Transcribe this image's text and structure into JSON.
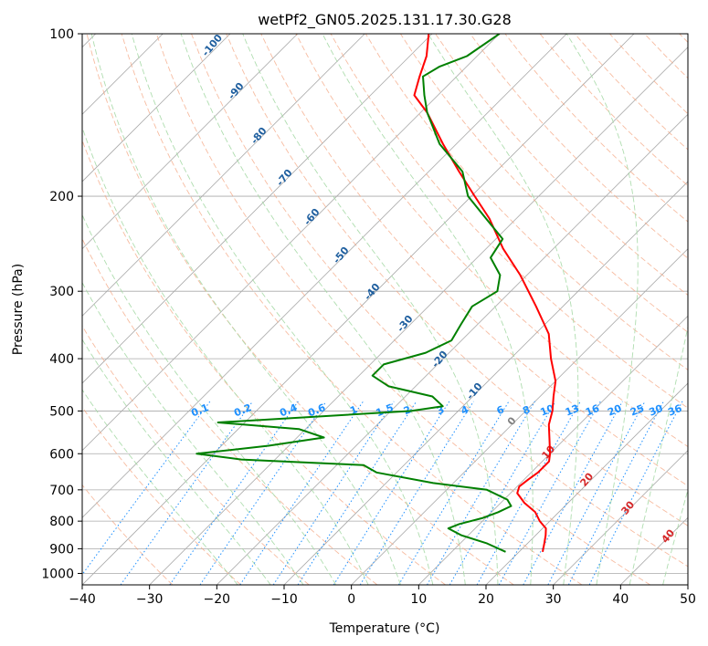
{
  "chart_data": {
    "type": "line",
    "title": "wetPf2_GN05.2025.131.17.30.G28",
    "xlabel": "Temperature (°C)",
    "ylabel": "Pressure (hPa)",
    "xlim": [
      -40,
      50
    ],
    "ylim": [
      1050,
      100
    ],
    "y_scale": "log",
    "skew": true,
    "grid": true,
    "x_ticks": [
      -40,
      -30,
      -20,
      -10,
      0,
      10,
      20,
      30,
      40,
      50
    ],
    "y_ticks": [
      100,
      200,
      300,
      400,
      500,
      600,
      700,
      800,
      900,
      1000
    ],
    "series": [
      {
        "color": "#ff0000",
        "role": "temperature",
        "points": [
          {
            "p": 912,
            "t": 23.5
          },
          {
            "p": 880,
            "t": 22.5
          },
          {
            "p": 850,
            "t": 21.5
          },
          {
            "p": 825,
            "t": 20.5
          },
          {
            "p": 800,
            "t": 18.5
          },
          {
            "p": 770,
            "t": 16.5
          },
          {
            "p": 740,
            "t": 13.5
          },
          {
            "p": 710,
            "t": 11.0
          },
          {
            "p": 690,
            "t": 10.3
          },
          {
            "p": 670,
            "t": 10.6
          },
          {
            "p": 650,
            "t": 11.0
          },
          {
            "p": 620,
            "t": 11.0
          },
          {
            "p": 600,
            "t": 10.0
          },
          {
            "p": 560,
            "t": 7.5
          },
          {
            "p": 530,
            "t": 5.5
          },
          {
            "p": 500,
            "t": 4.0
          },
          {
            "p": 470,
            "t": 2.0
          },
          {
            "p": 440,
            "t": 0.0
          },
          {
            "p": 400,
            "t": -4.0
          },
          {
            "p": 360,
            "t": -8.0
          },
          {
            "p": 320,
            "t": -14.0
          },
          {
            "p": 280,
            "t": -21.0
          },
          {
            "p": 250,
            "t": -27.5
          },
          {
            "p": 220,
            "t": -34.0
          },
          {
            "p": 200,
            "t": -39.5
          },
          {
            "p": 180,
            "t": -45.5
          },
          {
            "p": 160,
            "t": -52.0
          },
          {
            "p": 140,
            "t": -59.0
          },
          {
            "p": 130,
            "t": -63.5
          },
          {
            "p": 120,
            "t": -65.5
          },
          {
            "p": 110,
            "t": -67.5
          },
          {
            "p": 100,
            "t": -70.5
          }
        ]
      },
      {
        "color": "#008000",
        "role": "dewpoint",
        "points": [
          {
            "p": 912,
            "t": 18.0
          },
          {
            "p": 880,
            "t": 14.0
          },
          {
            "p": 850,
            "t": 9.0
          },
          {
            "p": 825,
            "t": 6.0
          },
          {
            "p": 810,
            "t": 7.0
          },
          {
            "p": 790,
            "t": 9.5
          },
          {
            "p": 770,
            "t": 11.0
          },
          {
            "p": 750,
            "t": 12.0
          },
          {
            "p": 730,
            "t": 10.5
          },
          {
            "p": 700,
            "t": 6.0
          },
          {
            "p": 680,
            "t": -3.0
          },
          {
            "p": 650,
            "t": -13.0
          },
          {
            "p": 630,
            "t": -16.0
          },
          {
            "p": 615,
            "t": -35.0
          },
          {
            "p": 600,
            "t": -42.5
          },
          {
            "p": 580,
            "t": -33.0
          },
          {
            "p": 560,
            "t": -26.0
          },
          {
            "p": 540,
            "t": -31.0
          },
          {
            "p": 525,
            "t": -44.0
          },
          {
            "p": 500,
            "t": -17.0
          },
          {
            "p": 490,
            "t": -13.0
          },
          {
            "p": 470,
            "t": -16.0
          },
          {
            "p": 450,
            "t": -24.0
          },
          {
            "p": 430,
            "t": -28.0
          },
          {
            "p": 410,
            "t": -28.0
          },
          {
            "p": 390,
            "t": -23.5
          },
          {
            "p": 370,
            "t": -21.5
          },
          {
            "p": 345,
            "t": -22.5
          },
          {
            "p": 320,
            "t": -23.5
          },
          {
            "p": 300,
            "t": -22.0
          },
          {
            "p": 280,
            "t": -24.0
          },
          {
            "p": 260,
            "t": -28.0
          },
          {
            "p": 240,
            "t": -29.0
          },
          {
            "p": 220,
            "t": -34.5
          },
          {
            "p": 200,
            "t": -40.5
          },
          {
            "p": 180,
            "t": -45.0
          },
          {
            "p": 160,
            "t": -52.5
          },
          {
            "p": 140,
            "t": -59.0
          },
          {
            "p": 130,
            "t": -62.0
          },
          {
            "p": 120,
            "t": -65.0
          },
          {
            "p": 115,
            "t": -64.0
          },
          {
            "p": 110,
            "t": -61.5
          },
          {
            "p": 100,
            "t": -60.0
          }
        ]
      }
    ],
    "dry_adiabat_labels": [
      "-100",
      "-90",
      "-80",
      "-70",
      "-60",
      "-50",
      "-40",
      "-30",
      "-20",
      "-10"
    ],
    "moist_adiabat_labels": [
      "0",
      "10",
      "20",
      "30",
      "40"
    ],
    "mixing_ratio_labels": [
      "0.1",
      "0.2",
      "0.4",
      "0.6",
      "1",
      "1.5",
      "2",
      "3",
      "4",
      "6",
      "8",
      "10",
      "13",
      "16",
      "20",
      "25",
      "30",
      "36"
    ],
    "colors": {
      "isotherm": "#a9a9a9",
      "isobar": "#a9a9a9",
      "dry_adiabat": "#f4a582",
      "moist_adiabat": "#a6d9a6",
      "mixing_ratio": "#1e90ff",
      "reference": "#d2b48c",
      "temperature": "#ff0000",
      "dewpoint": "#008000"
    }
  }
}
